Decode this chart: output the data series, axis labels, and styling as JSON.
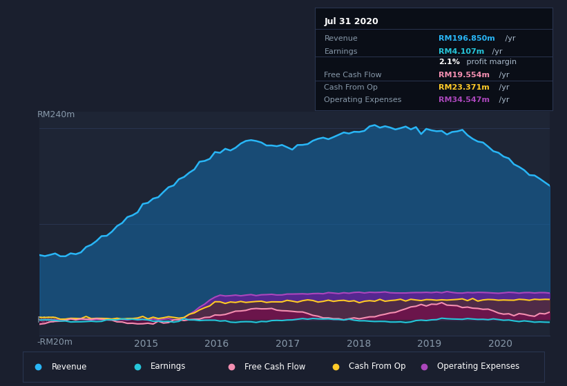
{
  "bg_color": "#1a1f2e",
  "plot_bg_color": "#1e2535",
  "grid_color": "#2a3550",
  "text_color": "#8899aa",
  "title_color": "#ffffff",
  "ylim": [
    -20,
    260
  ],
  "xlabel_years": [
    "2015",
    "2016",
    "2017",
    "2018",
    "2019",
    "2020"
  ],
  "revenue_color": "#29b6f6",
  "earnings_color": "#26c6da",
  "fcf_color": "#f48fb1",
  "cashfromop_color": "#ffca28",
  "opex_color": "#ab47bc",
  "tooltip_bg": "#0a0e17",
  "tooltip_border": "#2a3550",
  "tooltip_title": "Jul 31 2020",
  "tooltip_revenue_label": "Revenue",
  "tooltip_revenue_value": "RM196.850m /yr",
  "tooltip_earnings_label": "Earnings",
  "tooltip_earnings_value": "RM4.107m /yr",
  "tooltip_margin": "2.1% profit margin",
  "tooltip_fcf_label": "Free Cash Flow",
  "tooltip_fcf_value": "RM19.554m /yr",
  "tooltip_cashop_label": "Cash From Op",
  "tooltip_cashop_value": "RM23.371m /yr",
  "tooltip_opex_label": "Operating Expenses",
  "tooltip_opex_value": "RM34.547m /yr",
  "legend_items": [
    "Revenue",
    "Earnings",
    "Free Cash Flow",
    "Cash From Op",
    "Operating Expenses"
  ]
}
